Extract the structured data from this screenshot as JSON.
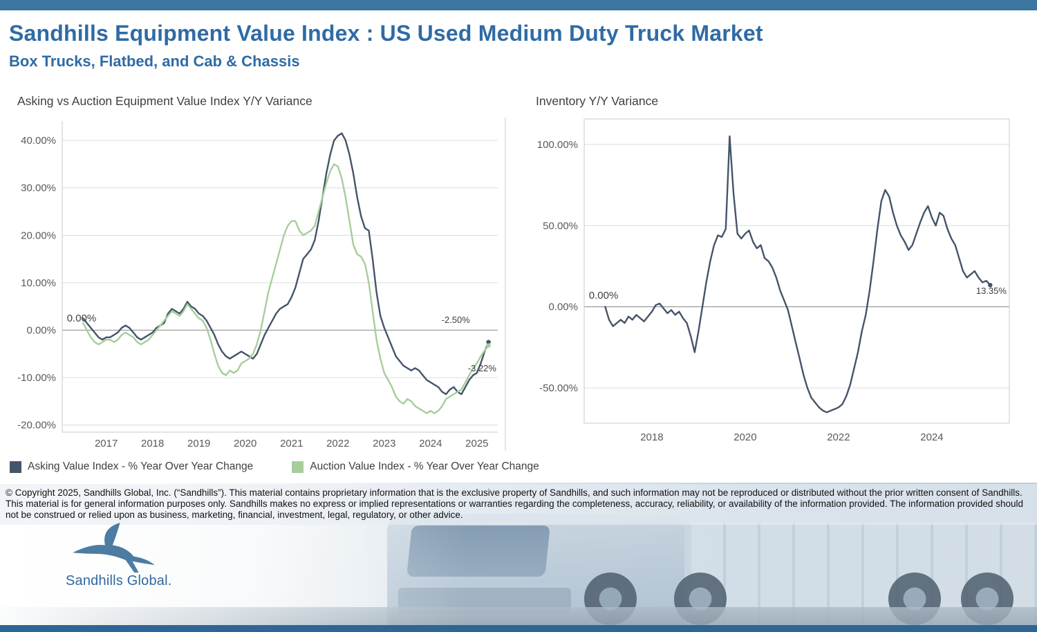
{
  "page": {
    "title": "Sandhills Equipment Value Index : US Used Medium Duty Truck Market",
    "subtitle": "Box Trucks, Flatbed, and Cab & Chassis"
  },
  "colors": {
    "brand_blue": "#2F6BA4",
    "top_bar": "#3B76A0",
    "bottom_bar": "#2D6595",
    "asking_line": "#44546A",
    "auction_line": "#A6CE9B"
  },
  "footer": {
    "copyright": "© Copyright 2025, Sandhills Global, Inc. (“Sandhills”). This material contains proprietary information that is the exclusive property of Sandhills, and such information may not be reproduced or distributed without the prior written consent of Sandhills. This material is for general information purposes only. Sandhills makes no express or implied representations or warranties regarding the completeness, accuracy, reliability, or availability of the information provided. The information provided should not be construed or relied upon as business, marketing, financial, investment, legal, regulatory, or other advice.",
    "logo_text": "Sandhills Global."
  },
  "chart_data": [
    {
      "type": "line",
      "title": "Asking vs Auction Equipment Value Index Y/Y Variance",
      "xlabel": "",
      "ylabel": "",
      "x_start": 2016.5,
      "x_step": 0.083333,
      "xlim": [
        2016.05,
        2025.45
      ],
      "ylim": [
        -21.5,
        44.1
      ],
      "yticks": [
        40,
        30,
        20,
        10,
        0,
        -10,
        -20
      ],
      "xticks": [
        2017,
        2018,
        2019,
        2020,
        2021,
        2022,
        2023,
        2024,
        2025
      ],
      "grid": true,
      "legend_position": "bottom",
      "series": [
        {
          "name": "Asking Value Index - % Year Over Year Change",
          "color": "#44546A",
          "values": [
            2.5,
            1.5,
            0.5,
            -0.5,
            -1.5,
            -2,
            -1.5,
            -1.5,
            -1,
            -0.5,
            0.5,
            1,
            0.5,
            -0.5,
            -1.5,
            -2,
            -1.5,
            -1,
            -0.5,
            0.5,
            1,
            1.5,
            3.5,
            4.5,
            4,
            3.5,
            4.5,
            6,
            5,
            4.5,
            3.5,
            3,
            2,
            0.5,
            -1,
            -3,
            -4.5,
            -5.5,
            -6,
            -5.5,
            -5,
            -4.5,
            -5,
            -5.5,
            -6,
            -5,
            -3,
            -1,
            0.5,
            2,
            3.5,
            4.5,
            5,
            5.5,
            7,
            9,
            12,
            15,
            16,
            17,
            19,
            23,
            28,
            33,
            37,
            40,
            41,
            41.5,
            40,
            37,
            33,
            28,
            24,
            21.5,
            21,
            15,
            8,
            3,
            0.5,
            -1.5,
            -3.5,
            -5.5,
            -6.5,
            -7.5,
            -8,
            -8.5,
            -8,
            -8.5,
            -9.5,
            -10.5,
            -11,
            -11.5,
            -12,
            -13,
            -13.5,
            -12.5,
            -12,
            -13,
            -13.5,
            -12,
            -10.5,
            -9.5,
            -9,
            -7,
            -4.5,
            -2.5
          ]
        },
        {
          "name": "Auction Value Index - % Year Over Year Change",
          "color": "#A6CE9B",
          "values": [
            1.5,
            0,
            -1.5,
            -2.5,
            -3,
            -2.5,
            -2,
            -2,
            -2.5,
            -2,
            -1,
            -0.5,
            -1,
            -1.5,
            -2.5,
            -3,
            -2.5,
            -2,
            -1,
            0,
            1,
            2,
            3,
            4,
            3.5,
            3,
            4,
            5.5,
            4.5,
            3.5,
            2.5,
            2,
            0.5,
            -2,
            -5,
            -7.5,
            -9,
            -9.5,
            -8.5,
            -9,
            -8.5,
            -7,
            -6.5,
            -6,
            -5,
            -3,
            0,
            4,
            8,
            11,
            14,
            17,
            20,
            22,
            23,
            23,
            21,
            20,
            20.5,
            21,
            22,
            25,
            28,
            31,
            33.5,
            35,
            34.5,
            32,
            28,
            23,
            18,
            16,
            15.5,
            14,
            10,
            4,
            -2,
            -6,
            -9,
            -10.5,
            -12,
            -14,
            -15,
            -15.5,
            -14.5,
            -15,
            -16,
            -16.5,
            -17,
            -17.5,
            -17,
            -17.5,
            -17,
            -16,
            -14.5,
            -14,
            -13.5,
            -13,
            -12.5,
            -11,
            -9.5,
            -8,
            -7,
            -5.5,
            -4.3,
            -3.22
          ]
        }
      ],
      "annotations": [
        {
          "text": "0.00%",
          "x": 2016.15,
          "y": 1.8,
          "anchor": "start",
          "size": 15
        },
        {
          "text": "-2.50%",
          "x": 2024.85,
          "y": 1.5,
          "anchor": "end",
          "size": 13
        },
        {
          "text": "-3.22%",
          "x": 2025.42,
          "y": -8.7,
          "anchor": "end",
          "size": 13
        }
      ]
    },
    {
      "type": "line",
      "title": "Inventory Y/Y Variance",
      "xlabel": "",
      "ylabel": "",
      "x_start": 2017.0,
      "x_step": 0.083333,
      "xlim": [
        2016.55,
        2025.66
      ],
      "ylim": [
        -71.7,
        115.7
      ],
      "yticks": [
        100,
        50,
        0,
        -50
      ],
      "xticks": [
        2018,
        2020,
        2022,
        2024
      ],
      "grid": true,
      "legend_position": "none",
      "series": [
        {
          "name": "Inventory Y/Y Variance",
          "color": "#44546A",
          "values": [
            0,
            -8,
            -12,
            -10,
            -8,
            -10,
            -6,
            -8,
            -5,
            -7,
            -9,
            -6,
            -3,
            1,
            2,
            -1,
            -4,
            -2,
            -5,
            -3,
            -7,
            -10,
            -18,
            -28,
            -15,
            0,
            15,
            28,
            38,
            44,
            43,
            48,
            105,
            70,
            45,
            42,
            45,
            47,
            40,
            36,
            38,
            30,
            28,
            24,
            18,
            10,
            4,
            -2,
            -12,
            -22,
            -32,
            -42,
            -50,
            -56,
            -59,
            -62,
            -64,
            -65,
            -64,
            -63,
            -62,
            -60,
            -55,
            -48,
            -38,
            -28,
            -15,
            -5,
            10,
            28,
            48,
            65,
            72,
            68,
            58,
            50,
            44,
            40,
            35,
            38,
            45,
            52,
            58,
            62,
            55,
            50,
            58,
            56,
            48,
            42,
            38,
            30,
            22,
            18,
            20,
            22,
            18,
            15,
            16,
            13.35
          ]
        }
      ],
      "annotations": [
        {
          "text": "0.00%",
          "x": 2016.65,
          "y": 5,
          "anchor": "start",
          "size": 15
        },
        {
          "text": "13.35%",
          "x": 2025.6,
          "y": 8,
          "anchor": "end",
          "size": 13
        }
      ]
    }
  ]
}
